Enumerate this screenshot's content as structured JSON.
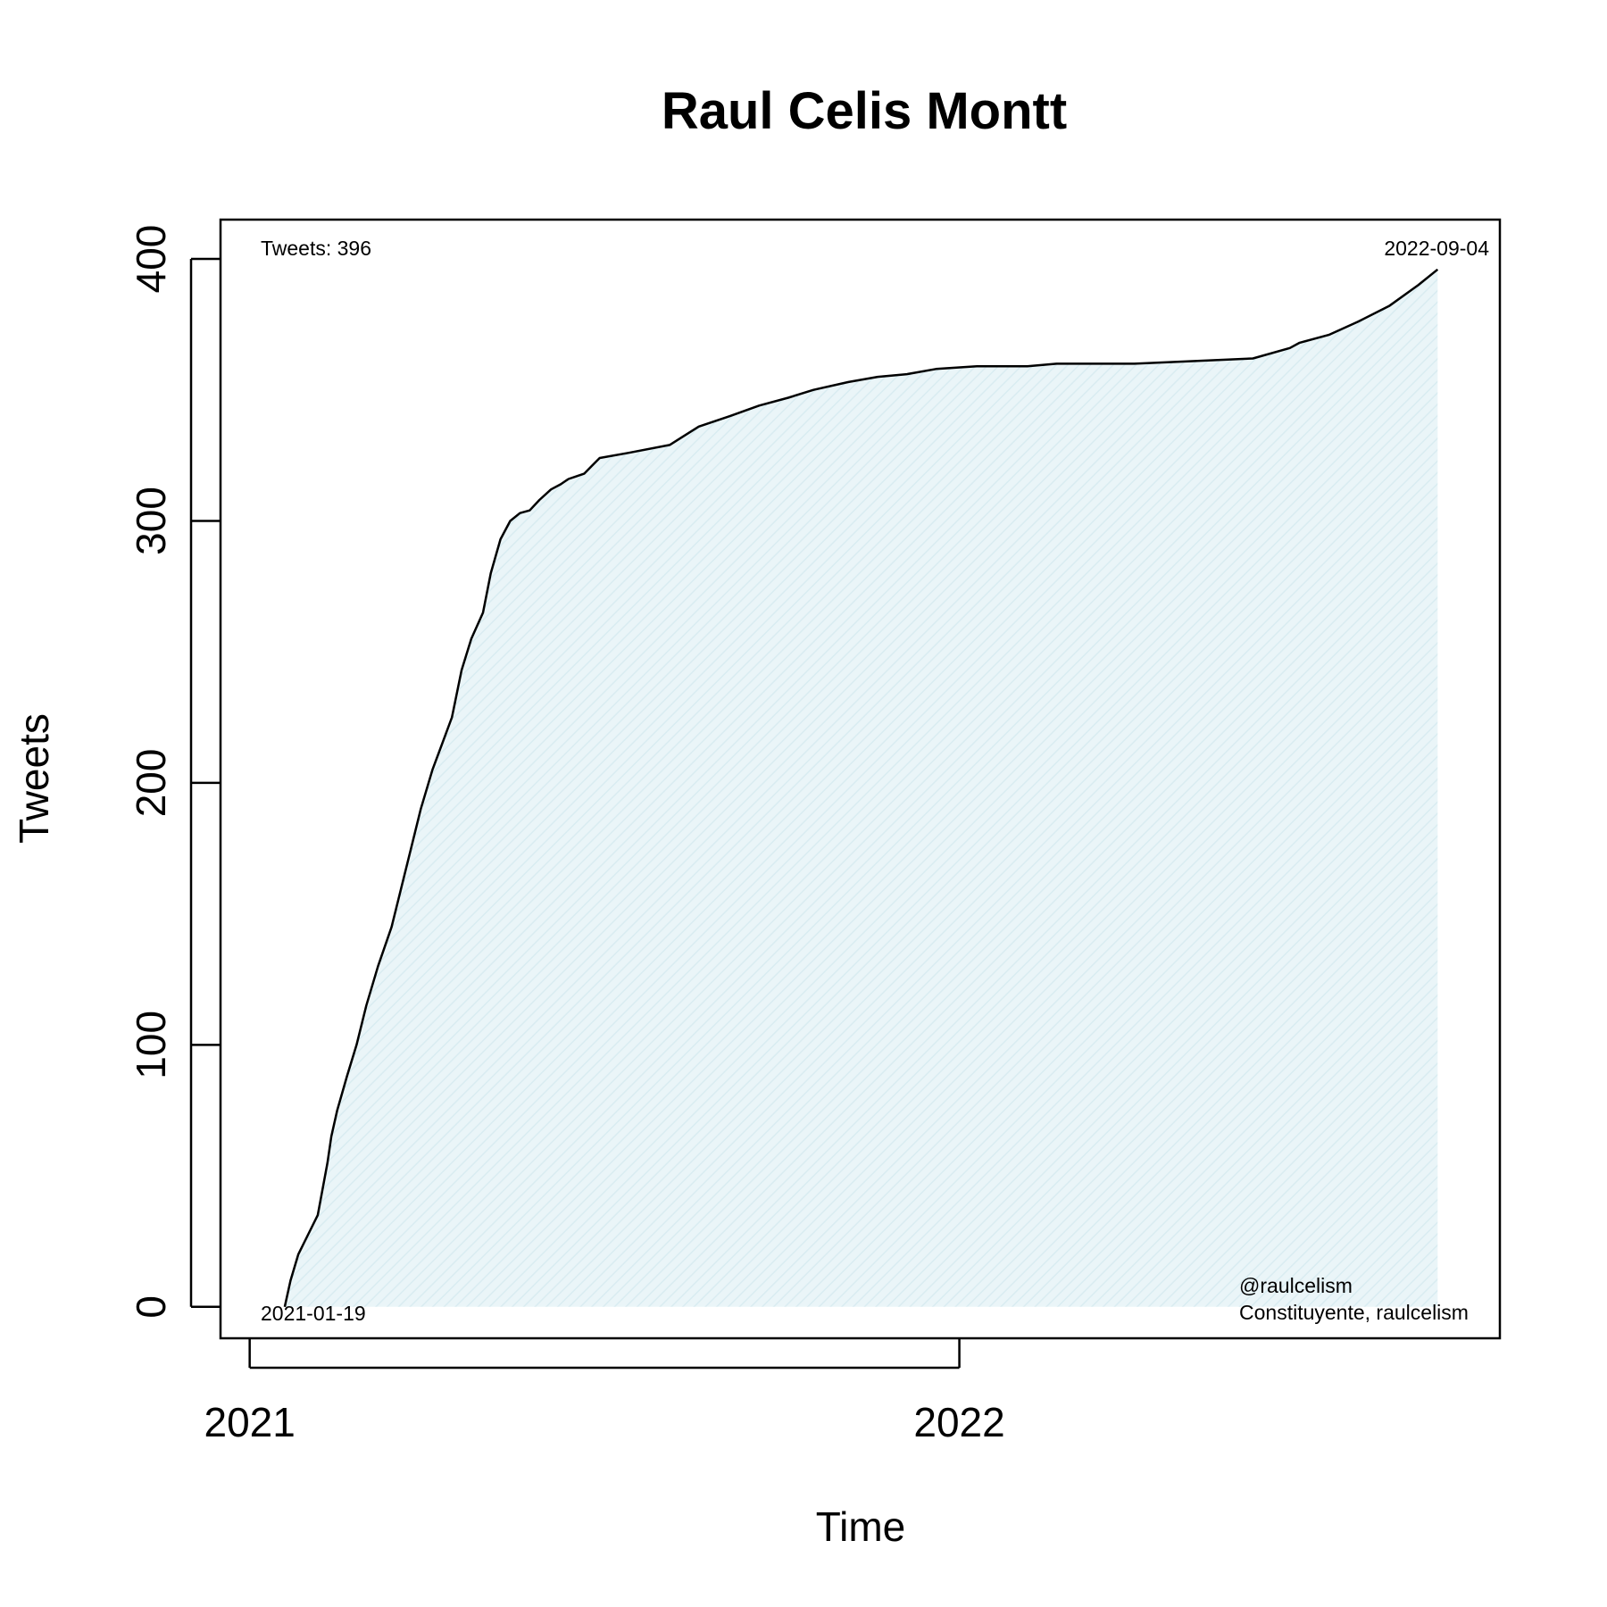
{
  "chart_data": {
    "type": "area",
    "title": "Raul Celis Montt",
    "xlabel": "Time",
    "ylabel": "Tweets",
    "xlim": [
      "2020-12-17",
      "2022-10-06"
    ],
    "ylim": [
      -12,
      415
    ],
    "x_ticks": [
      {
        "date": "2021-01-01",
        "label": "2021"
      },
      {
        "date": "2022-01-01",
        "label": "2022"
      }
    ],
    "y_ticks": [
      0,
      100,
      200,
      300,
      400
    ],
    "grid": false,
    "fill_color": "#e6f3f6",
    "line_color": "#000000",
    "annotations": {
      "total": "Tweets: 396",
      "start_date": "2021-01-19",
      "end_date": "2022-09-04",
      "handle": "@raulcelism",
      "description": "Constituyente, raulcelism"
    },
    "series": [
      {
        "x": [
          "2021-01-19",
          "2021-01-22",
          "2021-01-26",
          "2021-01-30",
          "2021-02-05",
          "2021-02-10",
          "2021-02-12",
          "2021-02-15",
          "2021-02-20",
          "2021-02-25",
          "2021-03-02",
          "2021-03-08",
          "2021-03-15",
          "2021-03-20",
          "2021-03-25",
          "2021-03-30",
          "2021-04-05",
          "2021-04-10",
          "2021-04-15",
          "2021-04-20",
          "2021-04-25",
          "2021-05-01",
          "2021-05-05",
          "2021-05-10",
          "2021-05-15",
          "2021-05-20",
          "2021-05-25",
          "2021-05-30",
          "2021-06-05",
          "2021-06-10",
          "2021-06-14",
          "2021-06-18",
          "2021-06-22",
          "2021-06-26",
          "2021-06-30",
          "2021-07-15",
          "2021-08-05",
          "2021-08-20",
          "2021-09-05",
          "2021-09-20",
          "2021-10-05",
          "2021-10-18",
          "2021-11-05",
          "2021-11-20",
          "2021-12-05",
          "2021-12-20",
          "2022-01-10",
          "2022-02-05",
          "2022-02-20",
          "2022-03-01",
          "2022-04-01",
          "2022-05-01",
          "2022-06-01",
          "2022-06-20",
          "2022-06-25",
          "2022-07-10",
          "2022-07-25",
          "2022-08-10",
          "2022-08-25",
          "2022-09-04"
        ],
        "y": [
          0,
          10,
          20,
          26,
          35,
          55,
          65,
          75,
          88,
          100,
          115,
          130,
          145,
          160,
          175,
          190,
          205,
          215,
          225,
          243,
          255,
          265,
          280,
          293,
          300,
          303,
          304,
          308,
          312,
          314,
          316,
          317,
          318,
          321,
          324,
          326,
          329,
          336,
          340,
          344,
          347,
          350,
          353,
          355,
          356,
          358,
          359,
          359,
          360,
          360,
          360,
          361,
          362,
          366,
          368,
          371,
          376,
          382,
          390,
          396
        ]
      }
    ]
  }
}
